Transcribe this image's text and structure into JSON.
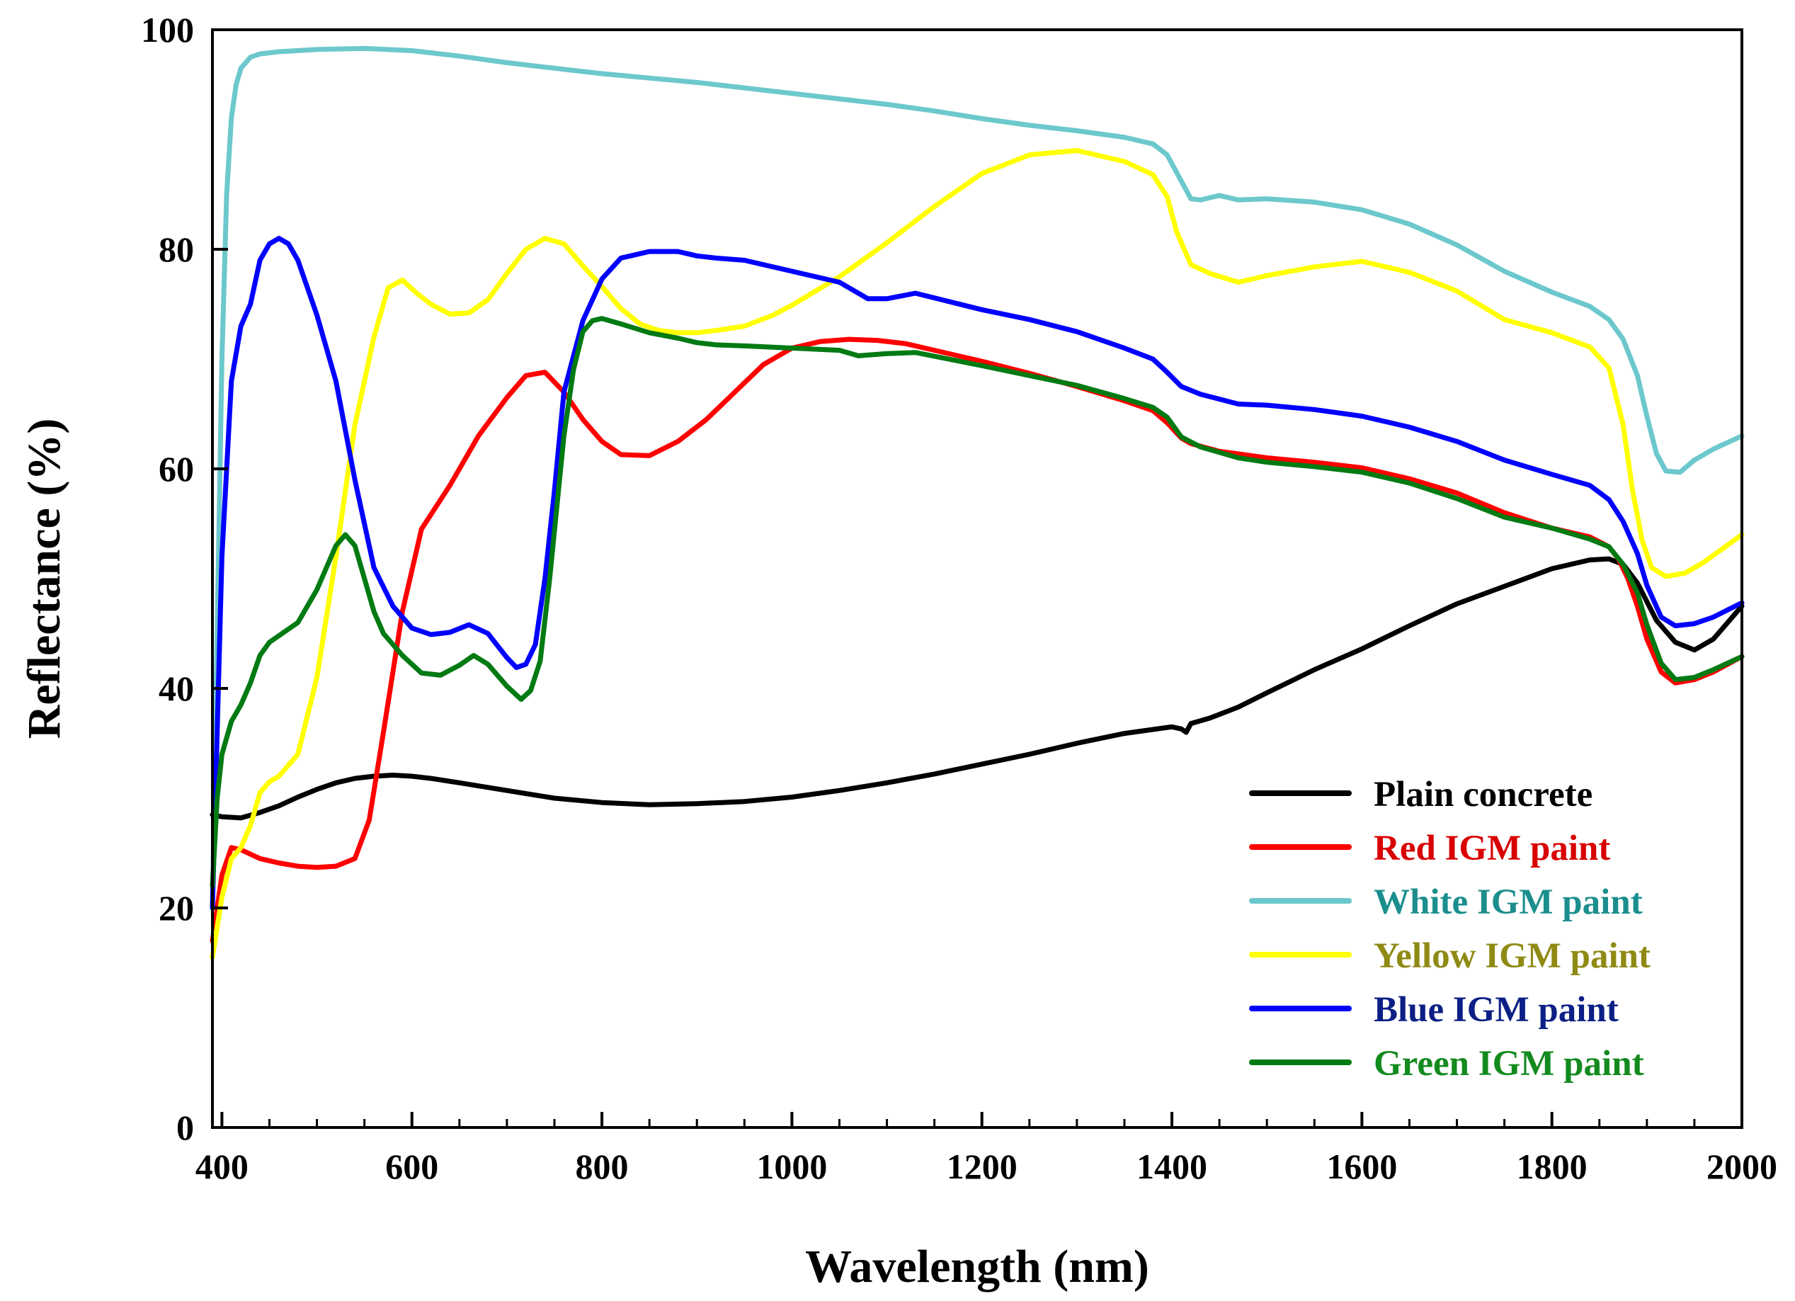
{
  "chart_data": {
    "type": "line",
    "title": "",
    "xlabel": "Wavelength (nm)",
    "ylabel": "Reflectance (%)",
    "xlim": [
      390,
      2000
    ],
    "ylim": [
      0,
      100
    ],
    "xticks": [
      "400",
      "600",
      "800",
      "1000",
      "1200",
      "1400",
      "1600",
      "1800",
      "2000"
    ],
    "yticks": [
      "0",
      "20",
      "40",
      "60",
      "80",
      "100"
    ],
    "grid": false,
    "legend_position": "bottom-right",
    "series": [
      {
        "name": "Plain concrete",
        "line_color": "#000000",
        "label_color": "#000000",
        "x": [
          390,
          400,
          420,
          440,
          460,
          480,
          500,
          520,
          540,
          560,
          580,
          600,
          620,
          650,
          700,
          750,
          800,
          850,
          900,
          950,
          1000,
          1050,
          1100,
          1150,
          1200,
          1250,
          1300,
          1350,
          1400,
          1410,
          1415,
          1420,
          1440,
          1470,
          1500,
          1550,
          1600,
          1650,
          1700,
          1750,
          1800,
          1840,
          1860,
          1875,
          1890,
          1910,
          1930,
          1950,
          1970,
          2000
        ],
        "y": [
          28.5,
          28.3,
          28.2,
          28.7,
          29.3,
          30.1,
          30.8,
          31.4,
          31.8,
          32.0,
          32.1,
          32.0,
          31.8,
          31.4,
          30.7,
          30.0,
          29.6,
          29.4,
          29.5,
          29.7,
          30.1,
          30.7,
          31.4,
          32.2,
          33.1,
          34.0,
          35.0,
          35.9,
          36.5,
          36.3,
          36.0,
          36.8,
          37.3,
          38.3,
          39.6,
          41.7,
          43.6,
          45.7,
          47.7,
          49.3,
          50.9,
          51.7,
          51.8,
          51.3,
          49.6,
          46.2,
          44.2,
          43.5,
          44.5,
          47.5
        ]
      },
      {
        "name": "Red IGM paint",
        "line_color": "#ff0000",
        "label_color": "#d80000",
        "x": [
          390,
          400,
          410,
          420,
          440,
          460,
          480,
          500,
          520,
          540,
          555,
          570,
          590,
          610,
          640,
          670,
          700,
          720,
          740,
          760,
          780,
          800,
          820,
          850,
          880,
          910,
          940,
          970,
          1000,
          1030,
          1060,
          1090,
          1120,
          1150,
          1200,
          1250,
          1300,
          1350,
          1380,
          1395,
          1410,
          1420,
          1450,
          1500,
          1550,
          1600,
          1650,
          1700,
          1750,
          1800,
          1840,
          1860,
          1870,
          1880,
          1890,
          1900,
          1915,
          1930,
          1950,
          1970,
          2000
        ],
        "y": [
          17,
          23,
          25.5,
          25.3,
          24.5,
          24.1,
          23.8,
          23.7,
          23.8,
          24.5,
          28,
          36,
          47,
          54.5,
          58.5,
          63,
          66.5,
          68.5,
          68.8,
          67,
          64.5,
          62.5,
          61.3,
          61.2,
          62.5,
          64.5,
          67,
          69.5,
          71,
          71.6,
          71.8,
          71.7,
          71.4,
          70.8,
          69.8,
          68.7,
          67.5,
          66.2,
          65.3,
          64.2,
          62.8,
          62.3,
          61.6,
          61.0,
          60.6,
          60.1,
          59.1,
          57.8,
          56.0,
          54.6,
          53.8,
          52.9,
          51.8,
          50.0,
          47.5,
          44.5,
          41.5,
          40.5,
          40.8,
          41.5,
          42.9
        ]
      },
      {
        "name": "White IGM paint",
        "line_color": "#6cc8cc",
        "label_color": "#1b8e8e",
        "x": [
          390,
          395,
          400,
          405,
          410,
          415,
          420,
          430,
          440,
          460,
          500,
          550,
          600,
          650,
          700,
          750,
          800,
          850,
          900,
          950,
          1000,
          1050,
          1100,
          1150,
          1200,
          1250,
          1300,
          1350,
          1380,
          1395,
          1410,
          1420,
          1430,
          1450,
          1470,
          1500,
          1550,
          1600,
          1650,
          1700,
          1750,
          1800,
          1840,
          1860,
          1875,
          1890,
          1900,
          1910,
          1920,
          1935,
          1950,
          1970,
          2000
        ],
        "y": [
          20,
          45,
          70,
          85,
          92,
          95,
          96.5,
          97.5,
          97.8,
          98.0,
          98.2,
          98.3,
          98.1,
          97.6,
          97.0,
          96.5,
          96.0,
          95.6,
          95.2,
          94.7,
          94.2,
          93.7,
          93.2,
          92.6,
          91.9,
          91.3,
          90.8,
          90.2,
          89.6,
          88.6,
          86.2,
          84.6,
          84.5,
          84.9,
          84.5,
          84.6,
          84.3,
          83.6,
          82.3,
          80.4,
          78.0,
          76.1,
          74.8,
          73.6,
          71.8,
          68.5,
          64.8,
          61.4,
          59.8,
          59.7,
          60.8,
          61.8,
          63.0
        ]
      },
      {
        "name": "Yellow IGM paint",
        "line_color": "#ffff00",
        "label_color": "#8f8a14",
        "x": [
          390,
          400,
          410,
          420,
          430,
          440,
          450,
          460,
          480,
          500,
          520,
          540,
          560,
          575,
          590,
          605,
          620,
          640,
          660,
          680,
          700,
          720,
          740,
          760,
          780,
          800,
          820,
          840,
          860,
          880,
          900,
          920,
          950,
          980,
          1000,
          1050,
          1100,
          1150,
          1200,
          1250,
          1300,
          1350,
          1380,
          1395,
          1405,
          1420,
          1440,
          1470,
          1500,
          1550,
          1600,
          1650,
          1700,
          1750,
          1800,
          1840,
          1860,
          1875,
          1885,
          1895,
          1905,
          1920,
          1940,
          1960,
          2000
        ],
        "y": [
          15.5,
          21,
          24.5,
          25.5,
          27.5,
          30.5,
          31.5,
          32.0,
          34,
          41,
          52,
          64,
          72,
          76.5,
          77.2,
          76.0,
          75.0,
          74.1,
          74.2,
          75.4,
          77.8,
          80.0,
          81.0,
          80.5,
          78.5,
          76.6,
          74.6,
          73.2,
          72.6,
          72.4,
          72.4,
          72.6,
          73.0,
          74.0,
          74.9,
          77.5,
          80.6,
          83.9,
          86.9,
          88.6,
          89.0,
          88.0,
          86.8,
          84.8,
          81.6,
          78.6,
          77.8,
          77.0,
          77.6,
          78.4,
          78.9,
          77.9,
          76.2,
          73.6,
          72.4,
          71.1,
          69.2,
          64.0,
          58.0,
          53.5,
          51.0,
          50.2,
          50.5,
          51.5,
          54.0
        ]
      },
      {
        "name": "Blue IGM paint",
        "line_color": "#0000ff",
        "label_color": "#0b1f85",
        "x": [
          390,
          400,
          410,
          420,
          430,
          440,
          450,
          460,
          470,
          480,
          500,
          520,
          540,
          560,
          580,
          600,
          620,
          640,
          660,
          680,
          700,
          710,
          720,
          730,
          740,
          750,
          760,
          780,
          800,
          820,
          850,
          880,
          900,
          920,
          950,
          1000,
          1050,
          1080,
          1100,
          1130,
          1200,
          1250,
          1300,
          1350,
          1380,
          1395,
          1410,
          1430,
          1470,
          1500,
          1550,
          1600,
          1650,
          1700,
          1750,
          1800,
          1840,
          1860,
          1875,
          1890,
          1900,
          1915,
          1930,
          1950,
          1970,
          2000
        ],
        "y": [
          20,
          52,
          68,
          73,
          75,
          79,
          80.5,
          81,
          80.5,
          79,
          74,
          68,
          59,
          51,
          47.5,
          45.5,
          44.9,
          45.1,
          45.8,
          45.0,
          42.8,
          41.9,
          42.2,
          44.0,
          50,
          58,
          67,
          73.5,
          77.3,
          79.2,
          79.8,
          79.8,
          79.4,
          79.2,
          79.0,
          78.0,
          77.0,
          75.5,
          75.5,
          76.0,
          74.5,
          73.6,
          72.5,
          71.0,
          70.0,
          68.8,
          67.5,
          66.8,
          65.9,
          65.8,
          65.4,
          64.8,
          63.8,
          62.5,
          60.8,
          59.5,
          58.5,
          57.2,
          55.2,
          52.3,
          49.4,
          46.5,
          45.7,
          45.9,
          46.5,
          47.8
        ]
      },
      {
        "name": "Green IGM paint",
        "line_color": "#007a12",
        "label_color": "#138a1e",
        "x": [
          390,
          395,
          400,
          410,
          420,
          430,
          440,
          450,
          460,
          480,
          500,
          520,
          530,
          540,
          550,
          560,
          570,
          590,
          610,
          630,
          650,
          665,
          680,
          700,
          715,
          725,
          735,
          745,
          760,
          770,
          780,
          790,
          800,
          820,
          850,
          880,
          900,
          920,
          950,
          1000,
          1050,
          1070,
          1100,
          1130,
          1200,
          1250,
          1300,
          1350,
          1380,
          1395,
          1410,
          1430,
          1470,
          1500,
          1550,
          1600,
          1650,
          1700,
          1750,
          1800,
          1840,
          1860,
          1875,
          1890,
          1900,
          1915,
          1930,
          1950,
          1970,
          2000
        ],
        "y": [
          22,
          30,
          34,
          37,
          38.5,
          40.5,
          43,
          44.2,
          44.8,
          46,
          49,
          53,
          54,
          53,
          50,
          47,
          45,
          43,
          41.4,
          41.2,
          42.1,
          43.0,
          42.2,
          40.2,
          39.0,
          39.8,
          42.5,
          50,
          63,
          69,
          72.5,
          73.5,
          73.7,
          73.2,
          72.4,
          71.9,
          71.5,
          71.3,
          71.2,
          71.0,
          70.8,
          70.3,
          70.5,
          70.6,
          69.4,
          68.5,
          67.6,
          66.4,
          65.6,
          64.7,
          62.9,
          62.0,
          61.0,
          60.6,
          60.2,
          59.7,
          58.7,
          57.3,
          55.6,
          54.6,
          53.6,
          52.9,
          51.3,
          48.7,
          45.8,
          42.3,
          40.8,
          41.0,
          41.7,
          42.9
        ]
      }
    ]
  }
}
